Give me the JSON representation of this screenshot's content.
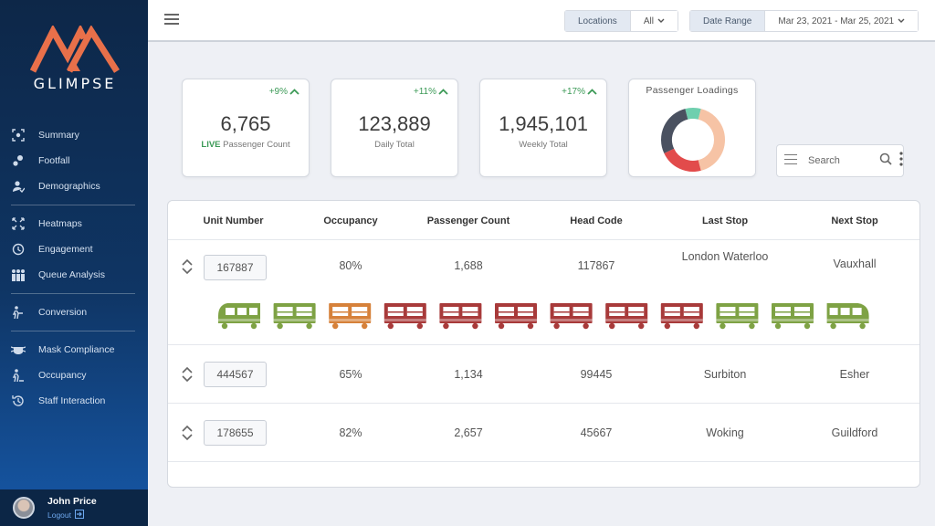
{
  "brand": {
    "name": "GLIMPSE",
    "color": "#e8704a"
  },
  "sidebar": {
    "groups": [
      [
        {
          "label": "Summary",
          "icon": "summary-icon"
        },
        {
          "label": "Footfall",
          "icon": "footfall-icon"
        },
        {
          "label": "Demographics",
          "icon": "demographics-icon"
        }
      ],
      [
        {
          "label": "Heatmaps",
          "icon": "heatmaps-icon"
        },
        {
          "label": "Engagement",
          "icon": "engagement-icon"
        },
        {
          "label": "Queue Analysis",
          "icon": "queue-icon"
        }
      ],
      [
        {
          "label": "Conversion",
          "icon": "conversion-icon"
        }
      ],
      [
        {
          "label": "Mask Compliance",
          "icon": "mask-icon"
        },
        {
          "label": "Occupancy",
          "icon": "occupancy-icon"
        },
        {
          "label": "Staff Interaction",
          "icon": "staff-icon"
        }
      ]
    ],
    "user": {
      "name": "John Price",
      "logout": "Logout"
    }
  },
  "filters": {
    "locations_label": "Locations",
    "locations_value": "All",
    "date_label": "Date Range",
    "date_value": "Mar 23, 2021 - Mar 25, 2021"
  },
  "kpis": [
    {
      "delta": "+9%",
      "value": "6,765",
      "live": "LIVE",
      "label": "Passenger Count"
    },
    {
      "delta": "+11%",
      "value": "123,889",
      "label": "Daily Total"
    },
    {
      "delta": "+17%",
      "value": "1,945,101",
      "label": "Weekly Total"
    }
  ],
  "loadings": {
    "title": "Passenger Loadings",
    "segments": [
      {
        "name": "green",
        "fraction": 0.08,
        "color": "#6fcfae"
      },
      {
        "name": "peach",
        "fraction": 0.42,
        "color": "#f6c3a5"
      },
      {
        "name": "red",
        "fraction": 0.22,
        "color": "#e24b4b"
      },
      {
        "name": "dark",
        "fraction": 0.28,
        "color": "#4a5160"
      }
    ]
  },
  "search": {
    "placeholder": "Search"
  },
  "table": {
    "headers": [
      "Unit Number",
      "Occupancy",
      "Passenger Count",
      "Head Code",
      "Last Stop",
      "Next Stop"
    ],
    "rows": [
      {
        "unit": "167887",
        "occupancy": "80%",
        "passengers": "1,688",
        "head_code": "117867",
        "last_stop": "London Waterloo",
        "next_stop": "Vauxhall"
      },
      {
        "unit": "444567",
        "occupancy": "65%",
        "passengers": "1,134",
        "head_code": "99445",
        "last_stop": "Surbiton",
        "next_stop": "Esher"
      },
      {
        "unit": "178655",
        "occupancy": "82%",
        "passengers": "2,657",
        "head_code": "45667",
        "last_stop": "Woking",
        "next_stop": "Guildford"
      }
    ],
    "carriages": [
      "green",
      "green",
      "orange",
      "red",
      "red",
      "red",
      "red",
      "red",
      "red",
      "green",
      "green",
      "green"
    ],
    "carriage_colors": {
      "green": "#7ea244",
      "orange": "#d6813a",
      "red": "#a83a3a"
    }
  }
}
